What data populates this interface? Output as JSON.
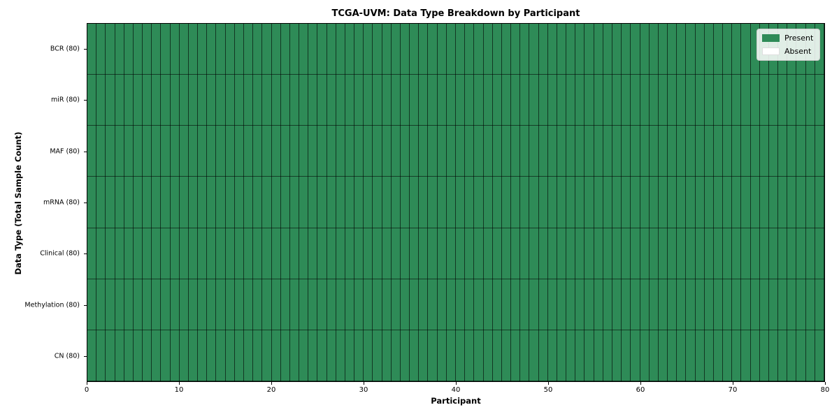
{
  "chart_data": {
    "type": "heatmap",
    "title": "TCGA-UVM: Data Type Breakdown by Participant",
    "xlabel": "Participant",
    "ylabel": "Data Type (Total Sample Count)",
    "x_range": [
      0,
      80
    ],
    "x_ticks": [
      "0",
      "10",
      "20",
      "30",
      "40",
      "50",
      "60",
      "70",
      "80"
    ],
    "n_participants": 80,
    "grid": true,
    "legend_position": "upper right",
    "rows": [
      {
        "label": "BCR (80)",
        "data_type": "BCR",
        "total_samples": 80,
        "present_count": 80,
        "absent_count": 0
      },
      {
        "label": "miR (80)",
        "data_type": "miR",
        "total_samples": 80,
        "present_count": 80,
        "absent_count": 0
      },
      {
        "label": "MAF (80)",
        "data_type": "MAF",
        "total_samples": 80,
        "present_count": 80,
        "absent_count": 0
      },
      {
        "label": "mRNA (80)",
        "data_type": "mRNA",
        "total_samples": 80,
        "present_count": 80,
        "absent_count": 0
      },
      {
        "label": "Clinical (80)",
        "data_type": "Clinical",
        "total_samples": 80,
        "present_count": 80,
        "absent_count": 0
      },
      {
        "label": "Methylation (80)",
        "data_type": "Methylation",
        "total_samples": 80,
        "present_count": 80,
        "absent_count": 0
      },
      {
        "label": "CN (80)",
        "data_type": "CN",
        "total_samples": 80,
        "present_count": 80,
        "absent_count": 0
      }
    ],
    "legend": {
      "entries": [
        {
          "label": "Present",
          "color": "#2e8b57"
        },
        {
          "label": "Absent",
          "color": "#ffffff"
        }
      ]
    },
    "colors": {
      "present": "#2e8b57",
      "absent": "#ffffff",
      "gridline": "rgba(0,0,0,0.6)",
      "spine": "#000000"
    }
  }
}
